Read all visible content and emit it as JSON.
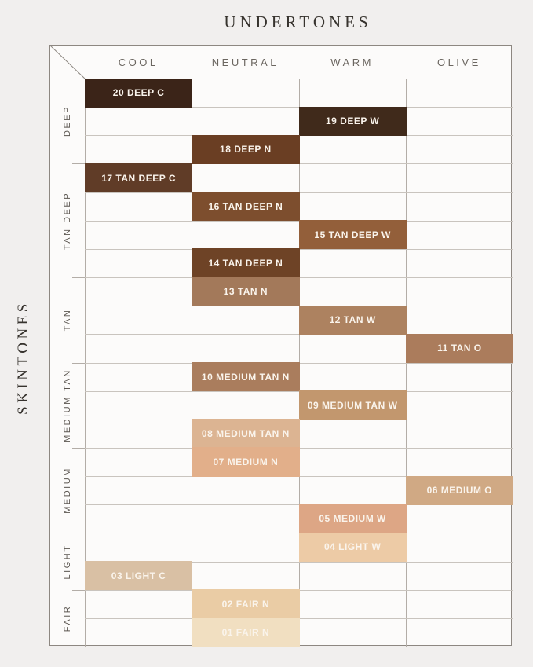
{
  "page": {
    "background": "#f1efee"
  },
  "chart_data": {
    "type": "table",
    "title": "UNDERTONES",
    "x_axis_label": "UNDERTONES",
    "y_axis_label": "SKINTONES",
    "legend_position": "none",
    "grid": true,
    "columns": [
      "COOL",
      "NEUTRAL",
      "WARM",
      "OLIVE"
    ],
    "row_groups": [
      {
        "label": "DEEP",
        "row_span": 3
      },
      {
        "label": "TAN DEEP",
        "row_span": 4
      },
      {
        "label": "TAN",
        "row_span": 3
      },
      {
        "label": "MEDIUM TAN",
        "row_span": 3
      },
      {
        "label": "MEDIUM",
        "row_span": 3
      },
      {
        "label": "LIGHT",
        "row_span": 2
      },
      {
        "label": "FAIR",
        "row_span": 2
      }
    ],
    "shades": [
      {
        "row": 1,
        "label": "20 DEEP C",
        "column": "COOL",
        "color": "#3b2418"
      },
      {
        "row": 2,
        "label": "19 DEEP W",
        "column": "WARM",
        "color": "#402a1b"
      },
      {
        "row": 3,
        "label": "18 DEEP N",
        "column": "NEUTRAL",
        "color": "#6a3e23"
      },
      {
        "row": 4,
        "label": "17 TAN DEEP C",
        "column": "COOL",
        "color": "#603c27"
      },
      {
        "row": 5,
        "label": "16 TAN DEEP N",
        "column": "NEUTRAL",
        "color": "#7d4e2e"
      },
      {
        "row": 6,
        "label": "15 TAN DEEP W",
        "column": "WARM",
        "color": "#935f3a"
      },
      {
        "row": 7,
        "label": "14 TAN DEEP N",
        "column": "NEUTRAL",
        "color": "#6e4326"
      },
      {
        "row": 8,
        "label": "13 TAN N",
        "column": "NEUTRAL",
        "color": "#a3795a"
      },
      {
        "row": 9,
        "label": "12 TAN W",
        "column": "WARM",
        "color": "#ad8260"
      },
      {
        "row": 10,
        "label": "11 TAN O",
        "column": "OLIVE",
        "color": "#ab7c5c"
      },
      {
        "row": 11,
        "label": "10 MEDIUM TAN N",
        "column": "NEUTRAL",
        "color": "#aa7d5d"
      },
      {
        "row": 12,
        "label": "09 MEDIUM TAN W",
        "column": "WARM",
        "color": "#c2976e"
      },
      {
        "row": 13,
        "label": "08 MEDIUM TAN N",
        "column": "NEUTRAL",
        "color": "#dcb492"
      },
      {
        "row": 14,
        "label": "07 MEDIUM N",
        "column": "NEUTRAL",
        "color": "#e2af8a"
      },
      {
        "row": 15,
        "label": "06 MEDIUM O",
        "column": "OLIVE",
        "color": "#d0a984"
      },
      {
        "row": 16,
        "label": "05 MEDIUM W",
        "column": "WARM",
        "color": "#dda685"
      },
      {
        "row": 17,
        "label": "04 LIGHT W",
        "column": "WARM",
        "color": "#edcba6"
      },
      {
        "row": 18,
        "label": "03 LIGHT C",
        "column": "COOL",
        "color": "#d9c0a4"
      },
      {
        "row": 19,
        "label": "02 FAIR N",
        "column": "NEUTRAL",
        "color": "#eacca5"
      },
      {
        "row": 20,
        "label": "01 FAIR N",
        "column": "NEUTRAL",
        "color": "#f1dfc1"
      }
    ],
    "cell_text_color": "#faf4ec"
  },
  "colors": {
    "page_bg": "#f1efee",
    "table_bg": "#fcfbfa",
    "outer_border": "#8d8781",
    "row_line": "#c9c4be",
    "column_line": "#b3ada7",
    "header_text": "#6b6660",
    "group_text": "#5b5650",
    "title_text": "#37332e"
  }
}
